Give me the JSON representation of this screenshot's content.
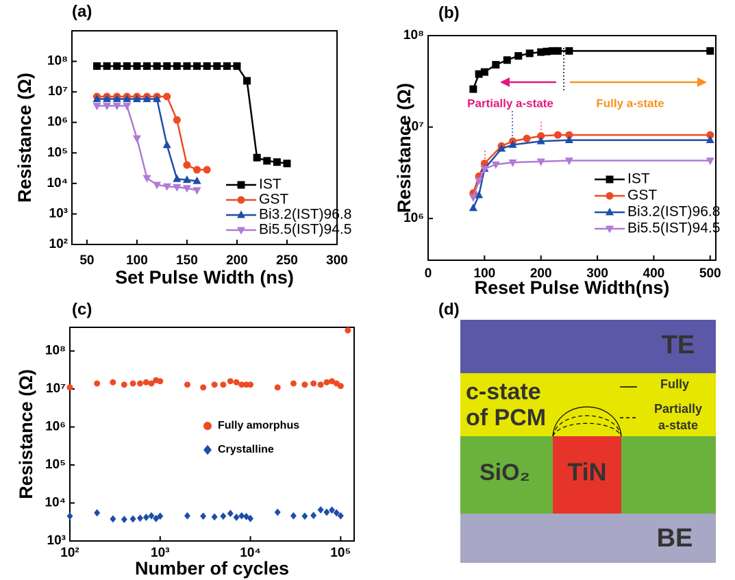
{
  "chart_data": [
    {
      "type": "line",
      "title": "(a)",
      "x_label": "Set Pulse Width (ns)",
      "y_label": "Resistance (Ω)",
      "xlim": [
        35,
        300
      ],
      "xticks": [
        50,
        100,
        150,
        200,
        250,
        300
      ],
      "ylim": [
        100,
        1000000000
      ],
      "ylog": true,
      "yticks": [
        {
          "value": 100,
          "label": "10²"
        },
        {
          "value": 1000,
          "label": "10³"
        },
        {
          "value": 10000,
          "label": "10⁴"
        },
        {
          "value": 100000,
          "label": "10⁵"
        },
        {
          "value": 1000000,
          "label": "10⁶"
        },
        {
          "value": 10000000,
          "label": "10⁷"
        },
        {
          "value": 100000000,
          "label": "10⁸"
        }
      ],
      "legend": "lower right",
      "series": [
        {
          "name": "IST",
          "color": "#000000",
          "marker": "square",
          "x": [
            60,
            70,
            80,
            90,
            100,
            110,
            120,
            130,
            140,
            150,
            160,
            170,
            180,
            190,
            200,
            210,
            220,
            230,
            240,
            250
          ],
          "values": [
            70000000.0,
            70000000.0,
            70000000.0,
            70000000.0,
            70000000.0,
            70000000.0,
            70000000.0,
            70000000.0,
            70000000.0,
            70000000.0,
            70000000.0,
            70000000.0,
            70000000.0,
            70000000.0,
            70000000.0,
            23000000.0,
            70000.0,
            55000.0,
            50000.0,
            45000.0
          ]
        },
        {
          "name": "GST",
          "color": "#ee4b25",
          "marker": "circle",
          "x": [
            60,
            70,
            80,
            90,
            100,
            110,
            120,
            130,
            140,
            150,
            160,
            170
          ],
          "values": [
            7000000.0,
            7000000.0,
            7000000.0,
            7000000.0,
            7000000.0,
            7000000.0,
            7000000.0,
            7000000.0,
            1200000.0,
            40000.0,
            28000.0,
            28000.0
          ]
        },
        {
          "name": "Bi3.2(IST)96.8",
          "color": "#1d4fa8",
          "marker": "triangle-up",
          "x": [
            60,
            70,
            80,
            90,
            100,
            110,
            120,
            130,
            140,
            150,
            160
          ],
          "values": [
            5800000.0,
            5800000.0,
            5800000.0,
            5800000.0,
            5800000.0,
            5800000.0,
            5800000.0,
            180000.0,
            14000.0,
            13000.0,
            12000.0
          ]
        },
        {
          "name": "Bi5.5(IST)94.5",
          "color": "#b07ad6",
          "marker": "triangle-down",
          "x": [
            60,
            70,
            80,
            90,
            100,
            110,
            120,
            130,
            140,
            150,
            160
          ],
          "values": [
            3500000.0,
            3500000.0,
            3500000.0,
            3500000.0,
            300000.0,
            15000.0,
            9000.0,
            8000.0,
            7500.0,
            7000.0,
            6000.0
          ]
        }
      ]
    },
    {
      "type": "line",
      "title": "(b)",
      "x_label": "Reset Pulse Width(ns)",
      "y_label": "Resistance (Ω)",
      "xlim": [
        0,
        510
      ],
      "xticks": [
        0,
        100,
        200,
        300,
        400,
        500
      ],
      "ylim": [
        350000,
        100000000
      ],
      "ylog": true,
      "yticks": [
        {
          "value": 1000000,
          "label": "10⁶"
        },
        {
          "value": 10000000,
          "label": "10⁷"
        },
        {
          "value": 100000000,
          "label": "10⁸"
        }
      ],
      "legend": "lower right",
      "annotations": [
        "Partially a-state",
        "Fully a-state"
      ],
      "series": [
        {
          "name": "IST",
          "color": "#000000",
          "marker": "square",
          "x": [
            80,
            90,
            100,
            120,
            140,
            160,
            180,
            200,
            210,
            220,
            230,
            250,
            500
          ],
          "values": [
            26000000.0,
            38000000.0,
            40000000.0,
            48000000.0,
            54000000.0,
            60000000.0,
            64000000.0,
            66000000.0,
            67000000.0,
            68000000.0,
            68000000.0,
            68000000.0,
            68000000.0
          ]
        },
        {
          "name": "GST",
          "color": "#ee4b25",
          "marker": "circle",
          "x": [
            80,
            90,
            100,
            130,
            150,
            175,
            200,
            230,
            250,
            500
          ],
          "values": [
            1900000.0,
            2900000.0,
            4000000.0,
            6200000.0,
            7000000.0,
            7500000.0,
            8000000.0,
            8200000.0,
            8200000.0,
            8200000.0
          ]
        },
        {
          "name": "Bi3.2(IST)96.8",
          "color": "#1d4fa8",
          "marker": "triangle-up",
          "x": [
            80,
            90,
            100,
            130,
            150,
            200,
            250,
            500
          ],
          "values": [
            1300000.0,
            1800000.0,
            3500000.0,
            5800000.0,
            6400000.0,
            7000000.0,
            7200000.0,
            7200000.0
          ]
        },
        {
          "name": "Bi5.5(IST)94.5",
          "color": "#b07ad6",
          "marker": "triangle-down",
          "x": [
            80,
            90,
            100,
            120,
            150,
            200,
            250,
            500
          ],
          "values": [
            1700000.0,
            2600000.0,
            3500000.0,
            3900000.0,
            4100000.0,
            4200000.0,
            4300000.0,
            4300000.0
          ]
        }
      ]
    },
    {
      "type": "scatter",
      "title": "(c)",
      "x_label": "Number of cycles",
      "y_label": "Resistance (Ω)",
      "xlim": [
        100,
        141000
      ],
      "xlog": true,
      "xticks": [
        {
          "value": 100,
          "label": "10²"
        },
        {
          "value": 1000,
          "label": "10³"
        },
        {
          "value": 10000,
          "label": "10⁴"
        },
        {
          "value": 100000,
          "label": "10⁵"
        }
      ],
      "ylim": [
        1000,
        420000000
      ],
      "ylog": true,
      "yticks": [
        {
          "value": 1000,
          "label": "10³"
        },
        {
          "value": 10000,
          "label": "10⁴"
        },
        {
          "value": 100000,
          "label": "10⁵"
        },
        {
          "value": 1000000,
          "label": "10⁶"
        },
        {
          "value": 10000000,
          "label": "10⁷"
        },
        {
          "value": 100000000,
          "label": "10⁸"
        }
      ],
      "legend": "center",
      "series": [
        {
          "name": "Fully amorphus",
          "color": "#ee4b25",
          "marker": "circle",
          "x": [
            100,
            200,
            300,
            400,
            500,
            600,
            700,
            800,
            900,
            1000,
            2000,
            3000,
            4000,
            5000,
            6000,
            7000,
            8000,
            9000,
            10000,
            20000,
            30000,
            40000,
            50000,
            60000,
            70000,
            80000,
            90000,
            100000,
            120000
          ],
          "values": [
            11000000.0,
            14000000.0,
            15000000.0,
            13000000.0,
            14000000.0,
            14000000.0,
            15000000.0,
            14000000.0,
            17000000.0,
            16000000.0,
            13000000.0,
            11000000.0,
            13000000.0,
            13000000.0,
            16000000.0,
            15000000.0,
            13000000.0,
            13000000.0,
            13000000.0,
            11000000.0,
            14000000.0,
            13000000.0,
            14000000.0,
            13000000.0,
            15000000.0,
            16000000.0,
            14000000.0,
            12000000.0,
            350000000.0
          ]
        },
        {
          "name": "Crystalline",
          "color": "#1c4ea8",
          "marker": "diamond",
          "x": [
            100,
            200,
            300,
            400,
            500,
            600,
            700,
            800,
            900,
            1000,
            2000,
            3000,
            4000,
            5000,
            6000,
            7000,
            8000,
            9000,
            10000,
            20000,
            30000,
            40000,
            50000,
            60000,
            70000,
            80000,
            90000,
            100000
          ],
          "values": [
            4500.0,
            5500.0,
            3800.0,
            3700.0,
            3800.0,
            4000.0,
            4200.0,
            4600.0,
            3900.0,
            4500.0,
            4600.0,
            4500.0,
            4300.0,
            4500.0,
            5300.0,
            4200.0,
            4600.0,
            4400.0,
            3900.0,
            5700.0,
            4600.0,
            4500.0,
            4700.0,
            6600.0,
            5700.0,
            6500.0,
            5500.0,
            4600.0
          ]
        }
      ]
    }
  ],
  "diagram": {
    "label": "(d)",
    "top": "TE",
    "pcm": [
      "c-state",
      "of PCM"
    ],
    "oxide": "SiO₂",
    "heater": "TiN",
    "bottom": "BE",
    "legend_full": "Fully",
    "legend_partial": [
      "Partially",
      "a-state"
    ]
  }
}
